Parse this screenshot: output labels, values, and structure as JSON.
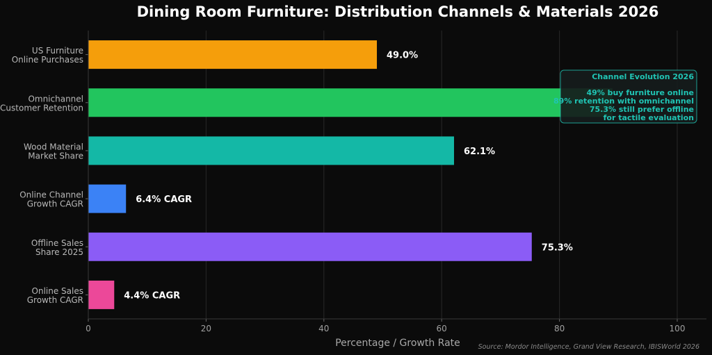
{
  "chart_data": {
    "type": "bar",
    "orientation": "horizontal",
    "title": "Dining Room Furniture: Distribution Channels & Materials 2026",
    "xlabel": "Percentage / Growth Rate",
    "ylabel": "",
    "xlim": [
      0,
      105
    ],
    "xticks": [
      0,
      20,
      40,
      60,
      80,
      100
    ],
    "grid": "vertical",
    "categories": [
      [
        "US Furniture",
        "Online Purchases"
      ],
      [
        "Omnichannel",
        "Customer Retention"
      ],
      [
        "Wood Material",
        "Market Share"
      ],
      [
        "Online Channel",
        "Growth CAGR"
      ],
      [
        "Offline Sales",
        "Share 2025"
      ],
      [
        "Online Sales",
        "Growth CAGR"
      ]
    ],
    "values": [
      49.0,
      89.0,
      62.1,
      6.4,
      75.3,
      4.4
    ],
    "value_labels": [
      "49.0%",
      "",
      "62.1%",
      "6.4% CAGR",
      "75.3%",
      "4.4% CAGR"
    ],
    "colors": [
      "#f59e0b",
      "#22c55e",
      "#14b8a6",
      "#3b82f6",
      "#8b5cf6",
      "#ec4899"
    ],
    "annotation": {
      "title": "Channel Evolution 2026",
      "lines": [
        "49% buy furniture online",
        "89% retention with omnichannel",
        "75.3% still prefer offline",
        "for tactile evaluation"
      ]
    },
    "source": "Source: Mordor Intelligence, Grand View Research, IBISWorld 2026"
  }
}
